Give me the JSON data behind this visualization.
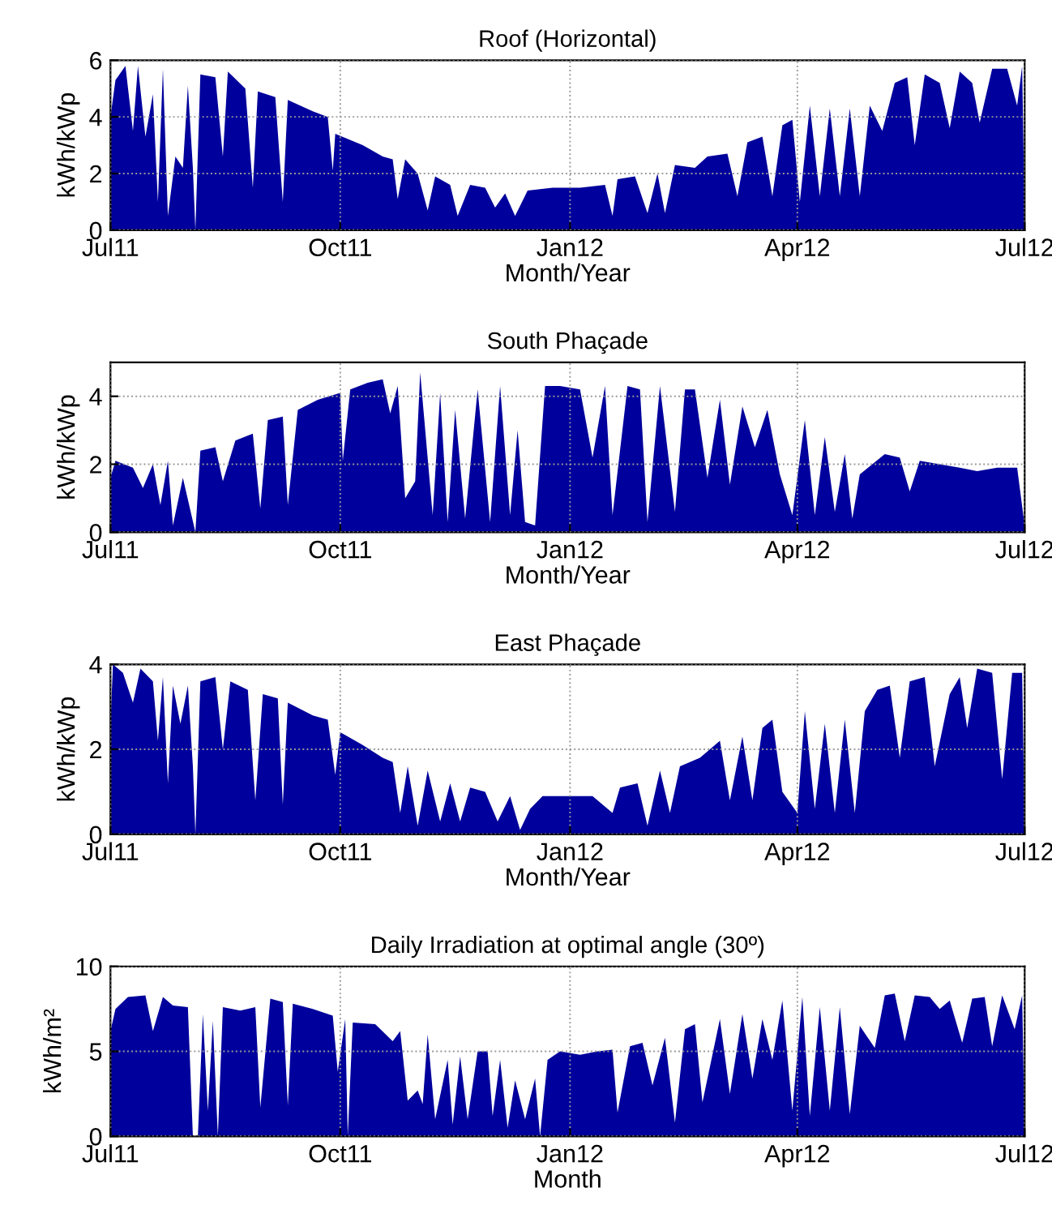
{
  "chart_data": [
    {
      "type": "area",
      "title": "Roof (Horizontal)",
      "xlabel": "Month/Year",
      "ylabel": "kWh/kWp",
      "color": "#00009c",
      "x": [
        "2011-07-01",
        "2011-07-03",
        "2011-07-07",
        "2011-07-10",
        "2011-07-12",
        "2011-07-15",
        "2011-07-18",
        "2011-07-20",
        "2011-07-22",
        "2011-07-24",
        "2011-07-27",
        "2011-07-30",
        "2011-08-01",
        "2011-08-03",
        "2011-08-04",
        "2011-08-06",
        "2011-08-12",
        "2011-08-15",
        "2011-08-17",
        "2011-08-24",
        "2011-08-27",
        "2011-08-29",
        "2011-09-05",
        "2011-09-08",
        "2011-09-10",
        "2011-09-20",
        "2011-09-26",
        "2011-09-28",
        "2011-09-29",
        "2011-10-10",
        "2011-10-18",
        "2011-10-22",
        "2011-10-24",
        "2011-10-27",
        "2011-11-01",
        "2011-11-05",
        "2011-11-08",
        "2011-11-14",
        "2011-11-17",
        "2011-11-22",
        "2011-11-28",
        "2011-12-02",
        "2011-12-06",
        "2011-12-10",
        "2011-12-15",
        "2011-12-25",
        "2012-01-05",
        "2012-01-15",
        "2012-01-18",
        "2012-01-20",
        "2012-01-27",
        "2012-02-01",
        "2012-02-05",
        "2012-02-08",
        "2012-02-12",
        "2012-02-20",
        "2012-02-25",
        "2012-03-04",
        "2012-03-08",
        "2012-03-12",
        "2012-03-18",
        "2012-03-22",
        "2012-03-26",
        "2012-03-30",
        "2012-04-02",
        "2012-04-06",
        "2012-04-10",
        "2012-04-14",
        "2012-04-18",
        "2012-04-22",
        "2012-04-26",
        "2012-04-30",
        "2012-05-05",
        "2012-05-10",
        "2012-05-15",
        "2012-05-18",
        "2012-05-22",
        "2012-05-28",
        "2012-06-01",
        "2012-06-05",
        "2012-06-10",
        "2012-06-13",
        "2012-06-18",
        "2012-06-24",
        "2012-06-28",
        "2012-06-30",
        "2012-07-01"
      ],
      "values": [
        4.0,
        5.3,
        5.8,
        3.5,
        5.8,
        3.3,
        4.8,
        1.0,
        5.7,
        0.5,
        2.6,
        2.2,
        5.1,
        2.2,
        0.0,
        5.5,
        5.4,
        2.6,
        5.6,
        5.0,
        1.5,
        4.9,
        4.7,
        1.0,
        4.6,
        4.2,
        4.0,
        2.1,
        3.4,
        3.0,
        2.6,
        2.5,
        1.1,
        2.5,
        2.0,
        0.7,
        1.9,
        1.6,
        0.5,
        1.6,
        1.5,
        0.8,
        1.3,
        0.5,
        1.4,
        1.5,
        1.5,
        1.6,
        0.5,
        1.8,
        1.9,
        0.6,
        2.0,
        0.6,
        2.3,
        2.2,
        2.6,
        2.7,
        1.2,
        3.1,
        3.3,
        1.2,
        3.7,
        3.9,
        1.0,
        4.4,
        1.2,
        4.3,
        1.2,
        4.3,
        1.2,
        4.4,
        3.5,
        5.2,
        5.4,
        3.0,
        5.5,
        5.2,
        3.6,
        5.6,
        5.2,
        3.8,
        5.7,
        5.7,
        4.4,
        5.8,
        0.5
      ],
      "xlim": [
        "2011-07-01",
        "2012-07-01"
      ],
      "xticks": [
        {
          "value": "2011-07-01",
          "label": "Jul11"
        },
        {
          "value": "2011-10-01",
          "label": "Oct11"
        },
        {
          "value": "2012-01-01",
          "label": "Jan12"
        },
        {
          "value": "2012-04-01",
          "label": "Apr12"
        },
        {
          "value": "2012-07-01",
          "label": "Jul12"
        }
      ],
      "ylim": [
        0,
        6
      ],
      "yticks": [
        0,
        2,
        4,
        6
      ],
      "grid": true
    },
    {
      "type": "area",
      "title": "South Phaçade",
      "xlabel": "Month/Year",
      "ylabel": "kWh/kWp",
      "color": "#00009c",
      "x": [
        "2011-07-01",
        "2011-07-03",
        "2011-07-10",
        "2011-07-14",
        "2011-07-18",
        "2011-07-21",
        "2011-07-24",
        "2011-07-26",
        "2011-07-30",
        "2011-08-04",
        "2011-08-06",
        "2011-08-12",
        "2011-08-15",
        "2011-08-20",
        "2011-08-27",
        "2011-08-30",
        "2011-09-02",
        "2011-09-08",
        "2011-09-10",
        "2011-09-14",
        "2011-09-22",
        "2011-10-01",
        "2011-10-02",
        "2011-10-05",
        "2011-10-12",
        "2011-10-18",
        "2011-10-21",
        "2011-10-24",
        "2011-10-27",
        "2011-10-31",
        "2011-11-02",
        "2011-11-07",
        "2011-11-10",
        "2011-11-13",
        "2011-11-16",
        "2011-11-20",
        "2011-11-25",
        "2011-11-30",
        "2011-12-04",
        "2011-12-08",
        "2011-12-11",
        "2011-12-14",
        "2011-12-18",
        "2011-12-22",
        "2011-12-28",
        "2012-01-05",
        "2012-01-10",
        "2012-01-15",
        "2012-01-18",
        "2012-01-24",
        "2012-01-29",
        "2012-02-01",
        "2012-02-06",
        "2012-02-12",
        "2012-02-16",
        "2012-02-20",
        "2012-02-25",
        "2012-03-01",
        "2012-03-05",
        "2012-03-10",
        "2012-03-15",
        "2012-03-20",
        "2012-03-25",
        "2012-03-30",
        "2012-04-04",
        "2012-04-08",
        "2012-04-12",
        "2012-04-16",
        "2012-04-20",
        "2012-04-23",
        "2012-04-26",
        "2012-05-01",
        "2012-05-06",
        "2012-05-12",
        "2012-05-16",
        "2012-05-20",
        "2012-05-28",
        "2012-06-05",
        "2012-06-12",
        "2012-06-20",
        "2012-06-28",
        "2012-07-01"
      ],
      "values": [
        1.6,
        2.1,
        1.9,
        1.3,
        2.0,
        0.8,
        2.1,
        0.2,
        1.6,
        0.0,
        2.4,
        2.5,
        1.5,
        2.7,
        2.9,
        0.7,
        3.3,
        3.4,
        0.8,
        3.6,
        3.9,
        4.1,
        2.1,
        4.2,
        4.4,
        4.5,
        3.5,
        4.3,
        1.0,
        1.5,
        4.7,
        0.5,
        4.1,
        0.3,
        3.6,
        0.4,
        4.2,
        0.3,
        4.3,
        0.5,
        3.0,
        0.3,
        0.2,
        4.3,
        4.3,
        4.2,
        2.2,
        4.3,
        0.5,
        4.3,
        4.2,
        0.3,
        4.3,
        0.6,
        4.2,
        4.2,
        1.6,
        3.9,
        1.4,
        3.7,
        2.5,
        3.6,
        1.7,
        0.5,
        3.3,
        0.5,
        2.8,
        0.6,
        2.3,
        0.4,
        1.7,
        2.0,
        2.3,
        2.2,
        1.2,
        2.1,
        2.0,
        1.9,
        1.8,
        1.9,
        1.9,
        0.2
      ],
      "xlim": [
        "2011-07-01",
        "2012-07-01"
      ],
      "xticks": [
        {
          "value": "2011-07-01",
          "label": "Jul11"
        },
        {
          "value": "2011-10-01",
          "label": "Oct11"
        },
        {
          "value": "2012-01-01",
          "label": "Jan12"
        },
        {
          "value": "2012-04-01",
          "label": "Apr12"
        },
        {
          "value": "2012-07-01",
          "label": "Jul12"
        }
      ],
      "ylim": [
        0,
        5
      ],
      "yticks": [
        0,
        2,
        4
      ],
      "grid": true
    },
    {
      "type": "area",
      "title": "East Phaçade",
      "xlabel": "Month/Year",
      "ylabel": "kWh/kWp",
      "color": "#00009c",
      "x": [
        "2011-07-01",
        "2011-07-02",
        "2011-07-06",
        "2011-07-10",
        "2011-07-13",
        "2011-07-18",
        "2011-07-20",
        "2011-07-22",
        "2011-07-24",
        "2011-07-26",
        "2011-07-29",
        "2011-08-01",
        "2011-08-03",
        "2011-08-04",
        "2011-08-06",
        "2011-08-12",
        "2011-08-15",
        "2011-08-18",
        "2011-08-25",
        "2011-08-28",
        "2011-08-31",
        "2011-09-06",
        "2011-09-08",
        "2011-09-10",
        "2011-09-20",
        "2011-09-26",
        "2011-09-29",
        "2011-10-01",
        "2011-10-10",
        "2011-10-18",
        "2011-10-22",
        "2011-10-25",
        "2011-10-28",
        "2011-11-01",
        "2011-11-05",
        "2011-11-10",
        "2011-11-14",
        "2011-11-18",
        "2011-11-22",
        "2011-11-28",
        "2011-12-03",
        "2011-12-08",
        "2011-12-12",
        "2011-12-16",
        "2011-12-21",
        "2011-12-31",
        "2012-01-10",
        "2012-01-18",
        "2012-01-21",
        "2012-01-28",
        "2012-02-01",
        "2012-02-06",
        "2012-02-10",
        "2012-02-14",
        "2012-02-22",
        "2012-03-01",
        "2012-03-05",
        "2012-03-10",
        "2012-03-14",
        "2012-03-18",
        "2012-03-22",
        "2012-03-26",
        "2012-04-01",
        "2012-04-04",
        "2012-04-08",
        "2012-04-12",
        "2012-04-16",
        "2012-04-20",
        "2012-04-24",
        "2012-04-28",
        "2012-05-03",
        "2012-05-08",
        "2012-05-12",
        "2012-05-16",
        "2012-05-22",
        "2012-05-26",
        "2012-06-01",
        "2012-06-05",
        "2012-06-08",
        "2012-06-12",
        "2012-06-18",
        "2012-06-22",
        "2012-06-26",
        "2012-06-30",
        "2012-07-01"
      ],
      "values": [
        2.6,
        4.0,
        3.8,
        3.1,
        3.9,
        3.6,
        2.2,
        3.7,
        1.2,
        3.5,
        2.6,
        3.5,
        1.6,
        0.0,
        3.6,
        3.7,
        2.0,
        3.6,
        3.4,
        0.8,
        3.3,
        3.2,
        0.7,
        3.1,
        2.8,
        2.7,
        1.4,
        2.4,
        2.1,
        1.8,
        1.7,
        0.5,
        1.6,
        0.2,
        1.5,
        0.3,
        1.2,
        0.3,
        1.1,
        1.0,
        0.3,
        0.9,
        0.1,
        0.6,
        0.9,
        0.9,
        0.9,
        0.5,
        1.1,
        1.2,
        0.2,
        1.5,
        0.5,
        1.6,
        1.8,
        2.2,
        0.8,
        2.3,
        0.8,
        2.5,
        2.7,
        1.0,
        0.5,
        2.9,
        0.6,
        2.6,
        0.5,
        2.7,
        0.5,
        2.9,
        3.4,
        3.5,
        1.8,
        3.6,
        3.7,
        1.6,
        3.3,
        3.7,
        2.5,
        3.9,
        3.8,
        1.3,
        3.8,
        3.8,
        0.2
      ],
      "xlim": [
        "2011-07-01",
        "2012-07-01"
      ],
      "xticks": [
        {
          "value": "2011-07-01",
          "label": "Jul11"
        },
        {
          "value": "2011-10-01",
          "label": "Oct11"
        },
        {
          "value": "2012-01-01",
          "label": "Jan12"
        },
        {
          "value": "2012-04-01",
          "label": "Apr12"
        },
        {
          "value": "2012-07-01",
          "label": "Jul12"
        }
      ],
      "ylim": [
        0,
        4
      ],
      "yticks": [
        0,
        2,
        4
      ],
      "grid": true
    },
    {
      "type": "area",
      "title": "Daily Irradiation at optimal angle (30º)",
      "xlabel": "Month",
      "ylabel": "kWh/m²",
      "color": "#00009c",
      "x": [
        "2011-07-01",
        "2011-07-03",
        "2011-07-08",
        "2011-07-15",
        "2011-07-18",
        "2011-07-22",
        "2011-07-26",
        "2011-08-01",
        "2011-08-03",
        "2011-08-05",
        "2011-08-07",
        "2011-08-09",
        "2011-08-11",
        "2011-08-13",
        "2011-08-15",
        "2011-08-22",
        "2011-08-28",
        "2011-08-30",
        "2011-09-03",
        "2011-09-08",
        "2011-09-10",
        "2011-09-12",
        "2011-09-20",
        "2011-09-28",
        "2011-09-30",
        "2011-10-03",
        "2011-10-04",
        "2011-10-06",
        "2011-10-15",
        "2011-10-22",
        "2011-10-25",
        "2011-10-28",
        "2011-11-01",
        "2011-11-03",
        "2011-11-05",
        "2011-11-08",
        "2011-11-13",
        "2011-11-15",
        "2011-11-18",
        "2011-11-21",
        "2011-11-25",
        "2011-11-29",
        "2011-12-01",
        "2011-12-04",
        "2011-12-07",
        "2011-12-10",
        "2011-12-14",
        "2011-12-18",
        "2011-12-20",
        "2011-12-23",
        "2011-12-28",
        "2012-01-05",
        "2012-01-12",
        "2012-01-18",
        "2012-01-20",
        "2012-01-25",
        "2012-01-30",
        "2012-02-03",
        "2012-02-08",
        "2012-02-12",
        "2012-02-16",
        "2012-02-20",
        "2012-02-23",
        "2012-03-01",
        "2012-03-05",
        "2012-03-10",
        "2012-03-14",
        "2012-03-18",
        "2012-03-22",
        "2012-03-26",
        "2012-03-30",
        "2012-04-03",
        "2012-04-06",
        "2012-04-10",
        "2012-04-14",
        "2012-04-18",
        "2012-04-22",
        "2012-04-26",
        "2012-05-02",
        "2012-05-06",
        "2012-05-10",
        "2012-05-14",
        "2012-05-18",
        "2012-05-24",
        "2012-05-28",
        "2012-06-01",
        "2012-06-06",
        "2012-06-10",
        "2012-06-15",
        "2012-06-18",
        "2012-06-22",
        "2012-06-27",
        "2012-06-30",
        "2012-07-01"
      ],
      "values": [
        6.2,
        7.5,
        8.2,
        8.3,
        6.2,
        8.2,
        7.7,
        7.6,
        0.0,
        0.0,
        7.2,
        1.5,
        6.8,
        0.0,
        7.6,
        7.4,
        7.6,
        1.7,
        8.1,
        7.9,
        1.8,
        7.8,
        7.5,
        7.1,
        3.8,
        6.9,
        0.0,
        6.7,
        6.6,
        5.6,
        6.2,
        2.1,
        2.7,
        1.9,
        6.0,
        1.0,
        4.5,
        0.7,
        4.7,
        1.0,
        5.0,
        5.0,
        1.2,
        4.5,
        0.5,
        3.3,
        1.0,
        3.4,
        0.0,
        4.5,
        5.0,
        4.8,
        5.0,
        5.1,
        1.4,
        5.3,
        5.5,
        3.0,
        5.8,
        0.8,
        6.3,
        6.6,
        2.0,
        6.9,
        2.5,
        7.2,
        3.4,
        6.9,
        4.5,
        8.0,
        1.5,
        8.2,
        1.2,
        7.6,
        1.5,
        7.6,
        1.3,
        6.5,
        5.2,
        8.3,
        8.4,
        5.6,
        8.3,
        8.2,
        7.5,
        8.0,
        5.5,
        8.1,
        8.2,
        5.3,
        8.3,
        6.3,
        8.3,
        0.3
      ],
      "xlim": [
        "2011-07-01",
        "2012-07-01"
      ],
      "xticks": [
        {
          "value": "2011-07-01",
          "label": "Jul11"
        },
        {
          "value": "2011-10-01",
          "label": "Oct11"
        },
        {
          "value": "2012-01-01",
          "label": "Jan12"
        },
        {
          "value": "2012-04-01",
          "label": "Apr12"
        },
        {
          "value": "2012-07-01",
          "label": "Jul12"
        }
      ],
      "ylim": [
        0,
        10
      ],
      "yticks": [
        0,
        5,
        10
      ],
      "grid": true
    }
  ]
}
